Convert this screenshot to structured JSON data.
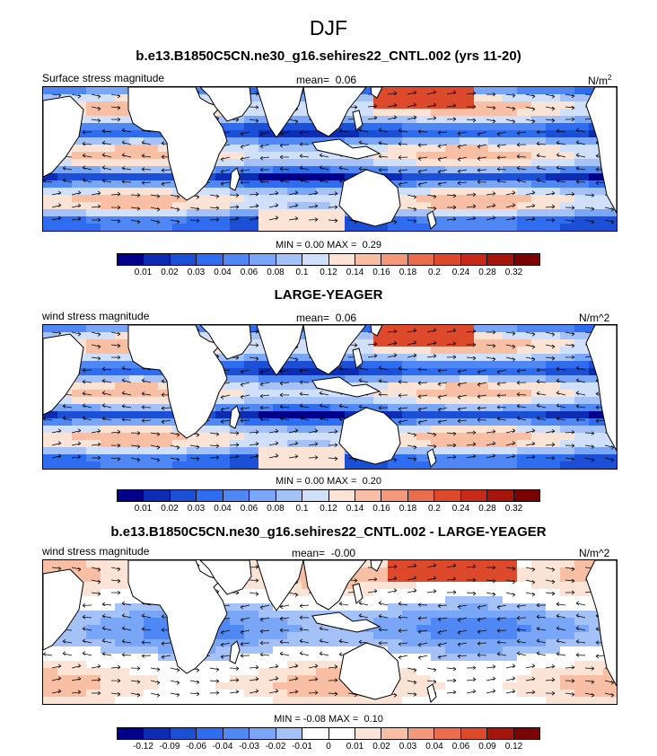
{
  "figure": {
    "title": "DJF"
  },
  "chart_data": [
    {
      "type": "heatmap",
      "title": "b.e13.B1850C5CN.ne30_g16.sehires22_CNTL.002 (yrs 11-20)",
      "left_label": "Surface stress magnitude",
      "mean_label": "mean=",
      "mean_value": "0.06",
      "units": "N/m",
      "units_sup": "2",
      "min_label": "MIN =",
      "min_value": "0.00",
      "max_label": "MAX =",
      "max_value": "0.29",
      "colorbar_levels": [
        "0.01",
        "0.02",
        "0.03",
        "0.04",
        "0.06",
        "0.08",
        "0.1",
        "0.12",
        "0.14",
        "0.16",
        "0.18",
        "0.2",
        "0.24",
        "0.28",
        "0.32"
      ],
      "colorbar_colors": [
        "#00008b",
        "#0c2db3",
        "#1a4fd6",
        "#2e6cf0",
        "#4f88f5",
        "#7aa6f7",
        "#a4c2f8",
        "#d0dffa",
        "#fbe4d6",
        "#f8bfa5",
        "#f39878",
        "#ea6d4d",
        "#dd4a2b",
        "#c72a18",
        "#a6140c",
        "#7a0403"
      ]
    },
    {
      "type": "heatmap",
      "title": "LARGE-YEAGER",
      "left_label": "wind stress magnitude",
      "mean_label": "mean=",
      "mean_value": "0.06",
      "units": "N/m^2",
      "min_label": "MIN =",
      "min_value": "0.00",
      "max_label": "MAX =",
      "max_value": "0.20",
      "colorbar_levels": [
        "0.01",
        "0.02",
        "0.03",
        "0.04",
        "0.06",
        "0.08",
        "0.1",
        "0.12",
        "0.14",
        "0.16",
        "0.18",
        "0.2",
        "0.24",
        "0.28",
        "0.32"
      ],
      "colorbar_colors": [
        "#00008b",
        "#0c2db3",
        "#1a4fd6",
        "#2e6cf0",
        "#4f88f5",
        "#7aa6f7",
        "#a4c2f8",
        "#d0dffa",
        "#fbe4d6",
        "#f8bfa5",
        "#f39878",
        "#ea6d4d",
        "#dd4a2b",
        "#c72a18",
        "#a6140c",
        "#7a0403"
      ]
    },
    {
      "type": "heatmap",
      "title": "b.e13.B1850C5CN.ne30_g16.sehires22_CNTL.002 - LARGE-YEAGER",
      "left_label": "wind stress magnitude",
      "mean_label": "mean=",
      "mean_value": "-0.00",
      "units": "N/m^2",
      "min_label": "MIN =",
      "min_value": "-0.08",
      "max_label": "MAX =",
      "max_value": "0.10",
      "colorbar_levels": [
        "-0.12",
        "-0.09",
        "-0.06",
        "-0.04",
        "-0.03",
        "-0.02",
        "-0.01",
        "0",
        "0.01",
        "0.02",
        "0.03",
        "0.04",
        "0.06",
        "0.09",
        "0.12"
      ],
      "colorbar_colors": [
        "#00008b",
        "#0c2db3",
        "#1a4fd6",
        "#2e6cf0",
        "#4f88f5",
        "#7aa6f7",
        "#a4c2f8",
        "#ffffff",
        "#ffffff",
        "#fbe4d6",
        "#f8bfa5",
        "#f39878",
        "#ea6d4d",
        "#dd4a2b",
        "#a6140c",
        "#7a0403"
      ]
    }
  ]
}
